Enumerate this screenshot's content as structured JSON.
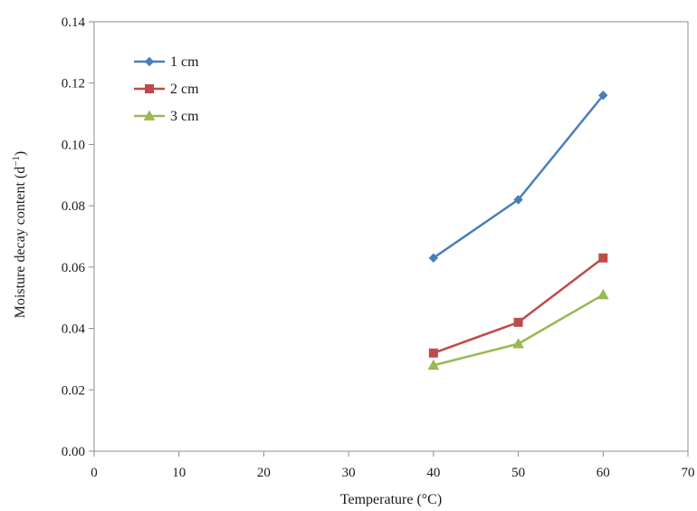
{
  "chart_data": {
    "type": "line",
    "title": "",
    "xlabel": "Temperature (°C)",
    "ylabel": "Moisture decay content (d",
    "ylabel_sup": "−1",
    "ylabel_end": ")",
    "xlim": [
      0,
      70
    ],
    "ylim": [
      0.0,
      0.14
    ],
    "x_ticks": [
      0,
      10,
      20,
      30,
      40,
      50,
      60,
      70
    ],
    "x_tick_labels": [
      "0",
      "10",
      "20",
      "30",
      "40",
      "50",
      "60",
      "70"
    ],
    "y_ticks": [
      0.0,
      0.02,
      0.04,
      0.06,
      0.08,
      0.1,
      0.12,
      0.14
    ],
    "y_tick_labels": [
      "0.00",
      "0.02",
      "0.04",
      "0.06",
      "0.08",
      "0.10",
      "0.12",
      "0.14"
    ],
    "grid": false,
    "legend_position": "top-left",
    "x": [
      40,
      50,
      60
    ],
    "series": [
      {
        "name": "1 cm",
        "values": [
          0.063,
          0.082,
          0.116
        ],
        "color": "#4a7ebb",
        "marker": "diamond"
      },
      {
        "name": "2 cm",
        "values": [
          0.032,
          0.042,
          0.063
        ],
        "color": "#be4b48",
        "marker": "square"
      },
      {
        "name": "3 cm",
        "values": [
          0.028,
          0.035,
          0.051
        ],
        "color": "#98b954",
        "marker": "triangle"
      }
    ]
  }
}
